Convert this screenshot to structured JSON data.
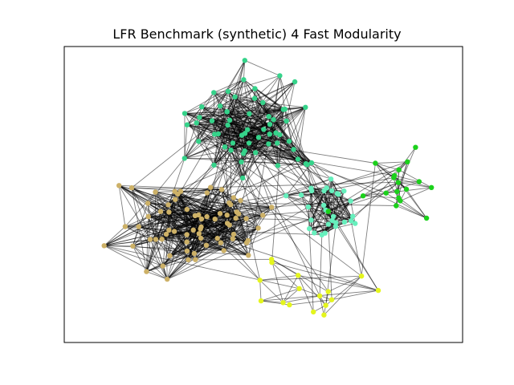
{
  "figure": {
    "title": "LFR Benchmark (synthetic) 4 Fast Modularity"
  },
  "legend": [],
  "colors": {
    "edge": "#000000",
    "frame": "#000000",
    "communities": {
      "green_top": "#35d38a",
      "tan_left": "#cdb167",
      "mint_mid": "#66f0bd",
      "bright_green_right": "#1bd11b",
      "yellow_bottom": "#e4f51d"
    }
  },
  "graph": {
    "communities": [
      {
        "id": "green_top",
        "color_key": "green_top",
        "node_count": 60
      },
      {
        "id": "tan_left",
        "color_key": "tan_left",
        "node_count": 70
      },
      {
        "id": "mint_mid",
        "color_key": "mint_mid",
        "node_count": 30
      },
      {
        "id": "bright_green_right",
        "color_key": "bright_green_right",
        "node_count": 18
      },
      {
        "id": "yellow_bottom",
        "color_key": "yellow_bottom",
        "node_count": 16
      }
    ],
    "layout": "force-directed",
    "edge_opacity": 0.5
  }
}
